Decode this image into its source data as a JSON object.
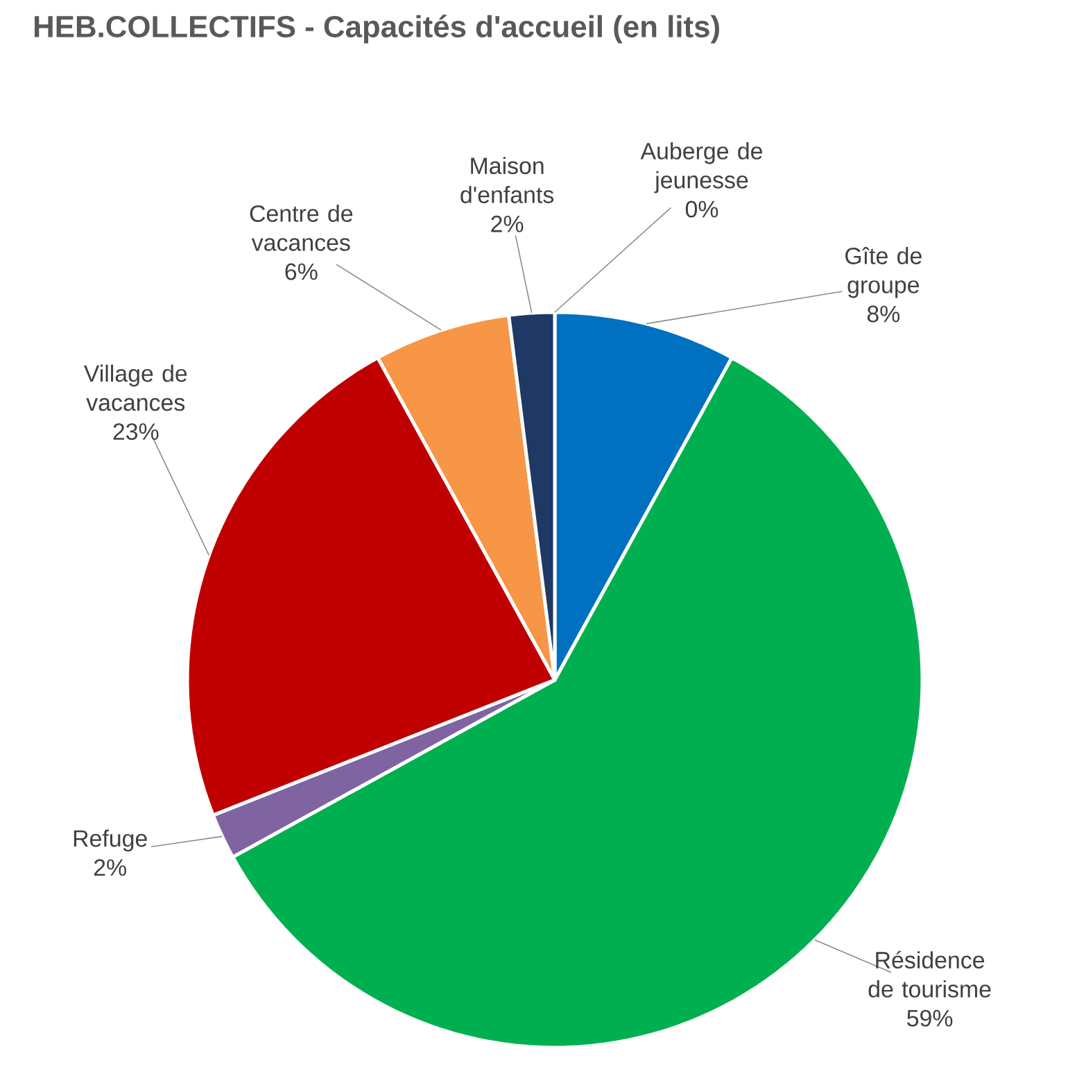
{
  "chart_data": {
    "type": "pie",
    "title": "HEB.COLLECTIFS  - Capacités d'accueil (en lits)",
    "categories": [
      "Gîte de groupe",
      "Résidence de tourisme",
      "Refuge",
      "Village de vacances",
      "Centre de vacances",
      "Maison d'enfants",
      "Auberge de jeunesse"
    ],
    "values": [
      8,
      59,
      2,
      23,
      6,
      2,
      0
    ],
    "value_labels": [
      "8%",
      "59%",
      "2%",
      "23%",
      "6%",
      "2%",
      "0%"
    ],
    "colors": [
      "#0070c0",
      "#00b050",
      "#8064a2",
      "#c00000",
      "#f79646",
      "#1f3864",
      "#7f7f7f"
    ]
  }
}
